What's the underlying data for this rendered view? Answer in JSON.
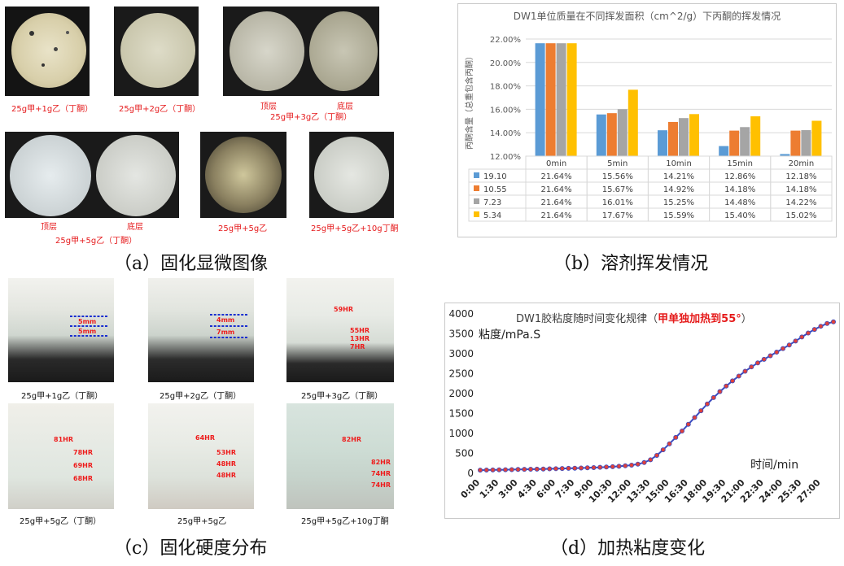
{
  "panel_a": {
    "caption": "（a）固化显微图像",
    "images": [
      {
        "label": "25g甲+1g乙（丁酮）"
      },
      {
        "label": "25g甲+2g乙（丁酮）"
      },
      {
        "label_top": "顶层",
        "label_bottom": "底层",
        "label": "25g甲+3g乙（丁酮）"
      },
      {
        "label_top": "顶层",
        "label_bottom": "底层",
        "label": "25g甲+5g乙（丁酮）"
      },
      {
        "label": "25g甲+5g乙"
      },
      {
        "label": "25g甲+5g乙+10g丁酮"
      }
    ]
  },
  "panel_b": {
    "caption": "（b）溶剂挥发情况",
    "chart_data": {
      "type": "bar",
      "title": "DW1单位质量在不同挥发面积（cm^2/g）下丙酮的挥发情况",
      "ylabel": "丙酮含量（总重包含丙酮）",
      "categories": [
        "0min",
        "5min",
        "10min",
        "15min",
        "20min"
      ],
      "ylim": [
        12,
        22
      ],
      "y_ticks": [
        "12.00%",
        "14.00%",
        "16.00%",
        "18.00%",
        "20.00%",
        "22.00%"
      ],
      "grid": true,
      "legend": "table-left",
      "series": [
        {
          "name": "19.10",
          "color": "#5b9bd5",
          "values": [
            21.64,
            15.56,
            14.21,
            12.86,
            12.18
          ],
          "labels": [
            "21.64%",
            "15.56%",
            "14.21%",
            "12.86%",
            "12.18%"
          ]
        },
        {
          "name": "10.55",
          "color": "#ed7d31",
          "values": [
            21.64,
            15.67,
            14.92,
            14.18,
            14.18
          ],
          "labels": [
            "21.64%",
            "15.67%",
            "14.92%",
            "14.18%",
            "14.18%"
          ]
        },
        {
          "name": "7.23",
          "color": "#a5a5a5",
          "values": [
            21.64,
            16.01,
            15.25,
            14.48,
            14.22
          ],
          "labels": [
            "21.64%",
            "16.01%",
            "15.25%",
            "14.48%",
            "14.22%"
          ]
        },
        {
          "name": "5.34",
          "color": "#ffc000",
          "values": [
            21.64,
            17.67,
            15.59,
            15.4,
            15.02
          ],
          "labels": [
            "21.64%",
            "17.67%",
            "15.59%",
            "15.40%",
            "15.02%"
          ]
        }
      ]
    }
  },
  "panel_c": {
    "caption": "（c）固化硬度分布",
    "images": [
      {
        "label": "25g甲+1g乙（丁酮）",
        "marks": [
          "5mm",
          "5mm"
        ]
      },
      {
        "label": "25g甲+2g乙（丁酮）",
        "marks": [
          "4mm",
          "7mm"
        ]
      },
      {
        "label": "25g甲+3g乙（丁酮）",
        "marks": [
          "59HR",
          "55HR",
          "13HR",
          "7HR"
        ]
      },
      {
        "label": "25g甲+5g乙（丁酮）",
        "marks": [
          "81HR",
          "78HR",
          "69HR",
          "68HR"
        ]
      },
      {
        "label": "25g甲+5g乙",
        "marks": [
          "64HR",
          "53HR",
          "48HR",
          "48HR"
        ]
      },
      {
        "label": "25g甲+5g乙+10g丁酮",
        "marks": [
          "82HR",
          "82HR",
          "74HR",
          "74HR"
        ]
      }
    ]
  },
  "panel_d": {
    "caption": "（d）加热粘度变化",
    "chart_data": {
      "type": "line",
      "title": "DW1胶粘度随时间变化规律",
      "title_highlight": "甲单独加热到55°",
      "title_open": "（",
      "title_close": "）",
      "ylabel": "粘度/mPa.S",
      "xlabel": "时间/min",
      "ylim": [
        0,
        4000
      ],
      "y_ticks": [
        "0",
        "500",
        "1000",
        "1500",
        "2000",
        "2500",
        "3000",
        "3500",
        "4000"
      ],
      "x_ticks": [
        "0:00",
        "1:30",
        "3:00",
        "4:30",
        "6:00",
        "7:30",
        "9:00",
        "10:30",
        "12:00",
        "13:30",
        "15:00",
        "16:30",
        "18:00",
        "19:30",
        "21:00",
        "22:30",
        "24:00",
        "25:30",
        "27:00"
      ],
      "line_color": "#3b4cc0",
      "marker_color": "#e0403a",
      "x_minutes": [
        0,
        0.5,
        1,
        1.5,
        2,
        2.5,
        3,
        3.5,
        4,
        4.5,
        5,
        5.5,
        6,
        6.5,
        7,
        7.5,
        8,
        8.5,
        9,
        9.5,
        10,
        10.5,
        11,
        11.5,
        12,
        12.5,
        13,
        13.5,
        14,
        14.5,
        15,
        15.5,
        16,
        16.5,
        17,
        17.5,
        18,
        18.5,
        19,
        19.5,
        20,
        20.5,
        21,
        21.5,
        22,
        22.5,
        23,
        23.5,
        24,
        24.5,
        25,
        25.5,
        26,
        26.5,
        27,
        27.5,
        28
      ],
      "values": [
        80,
        82,
        85,
        87,
        90,
        93,
        96,
        99,
        102,
        105,
        108,
        112,
        116,
        120,
        124,
        128,
        133,
        138,
        144,
        150,
        158,
        166,
        176,
        188,
        205,
        230,
        270,
        340,
        450,
        590,
        740,
        900,
        1060,
        1230,
        1400,
        1570,
        1740,
        1900,
        2050,
        2190,
        2320,
        2440,
        2560,
        2670,
        2770,
        2860,
        2950,
        3040,
        3130,
        3220,
        3320,
        3420,
        3520,
        3610,
        3690,
        3760,
        3800
      ]
    }
  }
}
